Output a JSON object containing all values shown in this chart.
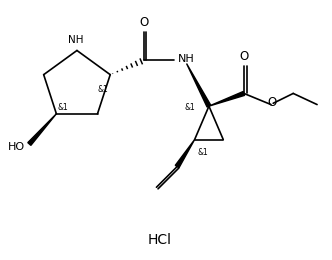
{
  "background_color": "#ffffff",
  "line_color": "#000000",
  "line_width": 1.2,
  "font_size": 7.5,
  "hcl_text": "HCl",
  "hcl_fontsize": 10,
  "xlim": [
    0,
    10
  ],
  "ylim": [
    0,
    8
  ]
}
